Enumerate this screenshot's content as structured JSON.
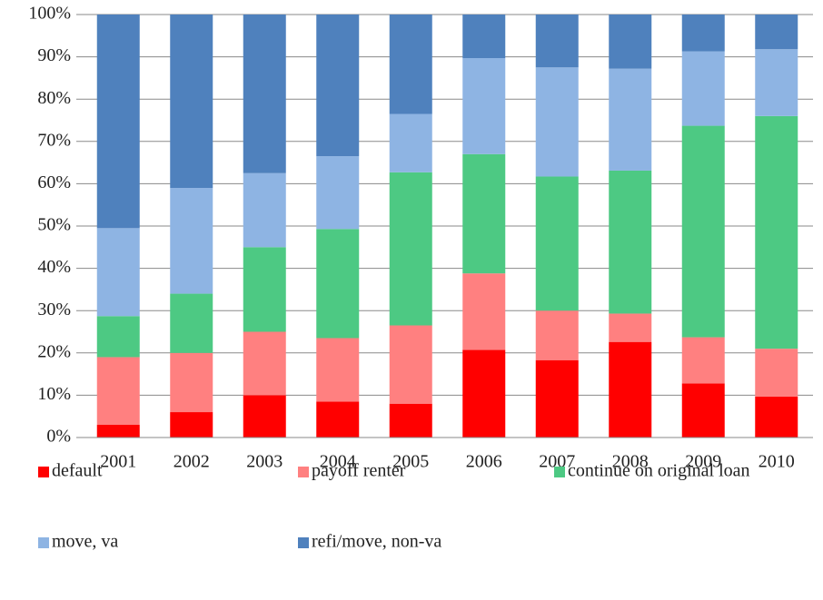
{
  "chart_data": {
    "type": "stacked_bar",
    "categories": [
      "2001",
      "2002",
      "2003",
      "2004",
      "2005",
      "2006",
      "2007",
      "2008",
      "2009",
      "2010"
    ],
    "series": [
      {
        "name": "default",
        "color": "#ff0000",
        "values": [
          3,
          6,
          10,
          8.5,
          8,
          20.7,
          18.3,
          22.6,
          12.8,
          9.7
        ]
      },
      {
        "name": "payoff renter",
        "color": "#ff8080",
        "values": [
          16,
          14,
          15,
          15,
          18.5,
          18.1,
          11.7,
          6.7,
          10.9,
          11.3
        ]
      },
      {
        "name": "continue on original loan",
        "color": "#4dc983",
        "values": [
          9.7,
          14,
          20,
          25.8,
          36.2,
          28.2,
          31.7,
          33.8,
          50,
          55
        ]
      },
      {
        "name": "move, va",
        "color": "#8eb4e3",
        "values": [
          20.8,
          25,
          17.5,
          17.2,
          13.8,
          22.7,
          25.8,
          24.1,
          17.6,
          15.8
        ]
      },
      {
        "name": "refi/move, non-va",
        "color": "#4f81bd",
        "values": [
          50.5,
          41,
          37.5,
          33.5,
          23.5,
          10.3,
          12.5,
          12.8,
          8.7,
          8.2
        ]
      }
    ],
    "ylim": [
      0,
      100
    ],
    "yticks": [
      {
        "value": 0,
        "label": "0%"
      },
      {
        "value": 10,
        "label": "10%"
      },
      {
        "value": 20,
        "label": "20%"
      },
      {
        "value": 30,
        "label": "30%"
      },
      {
        "value": 40,
        "label": "40%"
      },
      {
        "value": 50,
        "label": "50%"
      },
      {
        "value": 60,
        "label": "60%"
      },
      {
        "value": 70,
        "label": "70%"
      },
      {
        "value": 80,
        "label": "80%"
      },
      {
        "value": 90,
        "label": "90%"
      },
      {
        "value": 100,
        "label": "100%"
      }
    ],
    "grid": true,
    "legend": "bottom"
  }
}
